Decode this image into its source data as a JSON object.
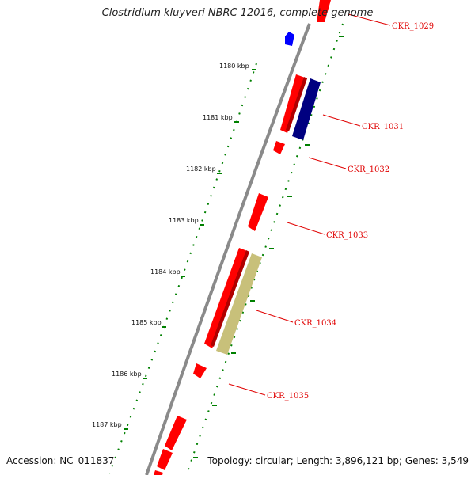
{
  "title": "Clostridium kluyveri NBRC 12016, complete genome",
  "footer": {
    "accession": "Accession: NC_011837",
    "summary": "Topology: circular; Length: 3,896,121 bp; Genes: 3,549"
  },
  "ruler_labels": [
    "1180 kbp",
    "1181 kbp",
    "1182 kbp",
    "1183 kbp",
    "1184 kbp",
    "1185 kbp",
    "1186 kbp",
    "1187 kbp"
  ],
  "gene_labels": [
    "CKR_1029",
    "CKR_1031",
    "CKR_1032",
    "CKR_1033",
    "CKR_1034",
    "CKR_1035"
  ],
  "colors": {
    "forward_gene": "#ff0000",
    "reverse_gene": "#0000ff",
    "dark_blue_feature": "#000080",
    "khaki_feature": "#c8c07a",
    "backbone": "#7f7f7f",
    "tick": "#008000",
    "label": "#e00000"
  }
}
